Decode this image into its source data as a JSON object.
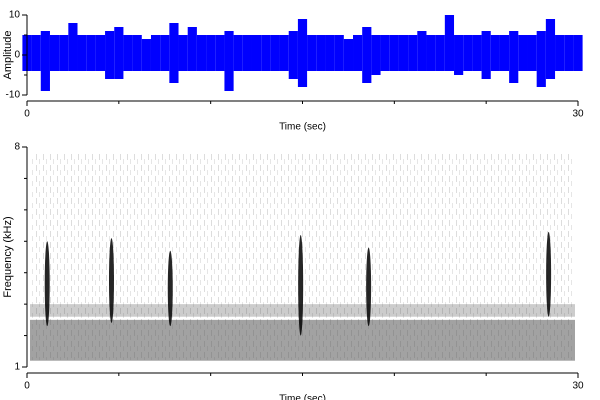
{
  "chart_data": [
    {
      "type": "waveform",
      "ylabel": "Amplitude",
      "xlabel": "Time (sec)",
      "color": "#0000ff",
      "xlim": [
        0,
        30
      ],
      "xticks": [
        0,
        30
      ],
      "xminor": [
        5,
        10,
        15,
        20,
        25
      ],
      "ylim": [
        -10,
        10
      ],
      "yticks": [
        -10,
        0,
        10
      ],
      "yminor": [
        -5,
        5
      ],
      "x": [
        0,
        0.5,
        1,
        1.5,
        2,
        2.5,
        3,
        3.5,
        4,
        4.5,
        5,
        5.5,
        6,
        6.5,
        7,
        7.5,
        8,
        8.5,
        9,
        9.5,
        10,
        10.5,
        11,
        11.5,
        12,
        12.5,
        13,
        13.5,
        14,
        14.5,
        15,
        15.5,
        16,
        16.5,
        17,
        17.5,
        18,
        18.5,
        19,
        19.5,
        20,
        20.5,
        21,
        21.5,
        22,
        22.5,
        23,
        23.5,
        24,
        24.5,
        25,
        25.5,
        26,
        26.5,
        27,
        27.5,
        28,
        28.5,
        29,
        29.5,
        30
      ],
      "series": [
        {
          "name": "max",
          "values": [
            5,
            5,
            6,
            5,
            5,
            8,
            5,
            5,
            5,
            6,
            7,
            5,
            5,
            4,
            5,
            5,
            8,
            5,
            7,
            5,
            5,
            5,
            6,
            5,
            5,
            5,
            5,
            5,
            5,
            6,
            9,
            5,
            5,
            5,
            5,
            4,
            5,
            7,
            5,
            5,
            5,
            5,
            5,
            6,
            5,
            5,
            10,
            5,
            5,
            5,
            6,
            5,
            5,
            6,
            5,
            5,
            6,
            9,
            5,
            5,
            5
          ]
        },
        {
          "name": "min",
          "values": [
            -4,
            -4,
            -9,
            -4,
            -4,
            -4,
            -4,
            -4,
            -4,
            -6,
            -6,
            -4,
            -4,
            -4,
            -4,
            -4,
            -7,
            -4,
            -4,
            -4,
            -4,
            -4,
            -9,
            -4,
            -4,
            -4,
            -4,
            -4,
            -4,
            -6,
            -8,
            -4,
            -4,
            -4,
            -4,
            -4,
            -4,
            -7,
            -5,
            -4,
            -4,
            -4,
            -4,
            -4,
            -4,
            -4,
            -4,
            -5,
            -4,
            -4,
            -6,
            -4,
            -4,
            -7,
            -4,
            -4,
            -8,
            -6,
            -4,
            -4,
            -4
          ]
        }
      ]
    },
    {
      "type": "spectrogram",
      "ylabel": "Frequency (kHz)",
      "xlabel": "Time (sec)",
      "color": "#000000",
      "xlim": [
        0,
        30
      ],
      "xticks": [
        0,
        30
      ],
      "xminor": [
        5,
        10,
        15,
        20,
        25
      ],
      "ylim": [
        1,
        8
      ],
      "yticks": [
        1,
        8
      ],
      "yminor": [
        2,
        3,
        4,
        5,
        6,
        7
      ],
      "bands": [
        {
          "fmin": 1.2,
          "fmax": 2.5,
          "intensity": 0.55
        },
        {
          "fmin": 2.6,
          "fmax": 3.0,
          "intensity": 0.3
        }
      ],
      "calls": [
        {
          "time": 1.1,
          "fmin": 2.3,
          "fmax": 5.0
        },
        {
          "time": 4.6,
          "fmin": 2.4,
          "fmax": 5.1
        },
        {
          "time": 7.8,
          "fmin": 2.3,
          "fmax": 4.7
        },
        {
          "time": 14.9,
          "fmin": 2.0,
          "fmax": 5.2
        },
        {
          "time": 18.6,
          "fmin": 2.3,
          "fmax": 4.8
        },
        {
          "time": 28.4,
          "fmin": 2.6,
          "fmax": 5.3
        }
      ]
    }
  ]
}
